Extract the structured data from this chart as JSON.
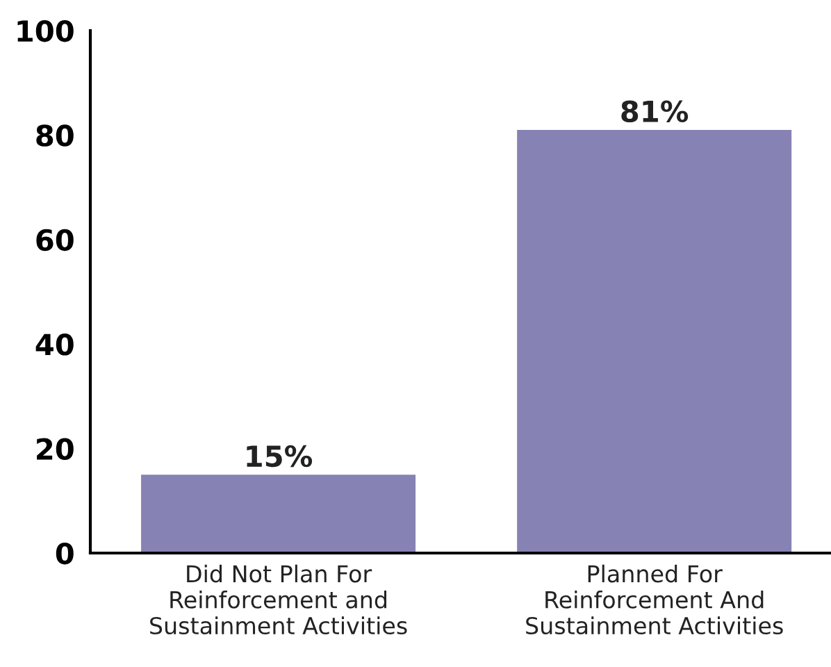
{
  "chart_data": {
    "type": "bar",
    "categories": [
      "Did Not Plan For\nReinforcement and\nSustainment Activities",
      "Planned For\nReinforcement And\nSustainment Activities"
    ],
    "values": [
      15,
      81
    ],
    "value_labels": [
      "15%",
      "81%"
    ],
    "color": "#8782b4",
    "ylim": [
      0,
      100
    ],
    "yticks": [
      0,
      20,
      40,
      60,
      80,
      100
    ],
    "grid": false,
    "legend": false
  }
}
